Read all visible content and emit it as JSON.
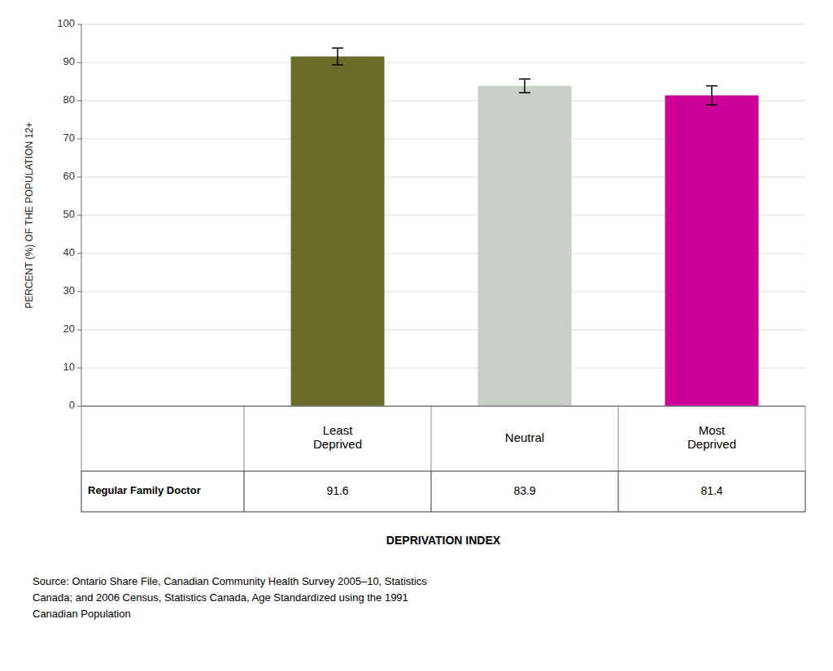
{
  "chart_data": {
    "type": "bar",
    "categories": [
      "Least\nDeprived",
      "Neutral",
      "Most\nDeprived"
    ],
    "values": [
      91.6,
      83.9,
      81.4
    ],
    "errors": [
      2.2,
      1.8,
      2.5
    ],
    "colors": [
      "#6b6b2a",
      "#c8cfc8",
      "#cc0099"
    ],
    "y_label": "PERCENT (%) OF THE POPULATION 12+",
    "x_label": "DEPRIVATION INDEX",
    "ylim": [
      0,
      100
    ],
    "yticks": [
      0,
      10,
      20,
      30,
      40,
      50,
      60,
      70,
      80,
      90,
      100
    ],
    "grid": true,
    "data_labels": true,
    "annotations": [
      "Regular Family  Doctor",
      "Source: Ontario Share File, Canadian Community Health Survey 2005–10, Statistics\nCanada; and 2006 Census, Statistics Canada, Age Standardized using the 1991\nCanadian Population"
    ]
  }
}
